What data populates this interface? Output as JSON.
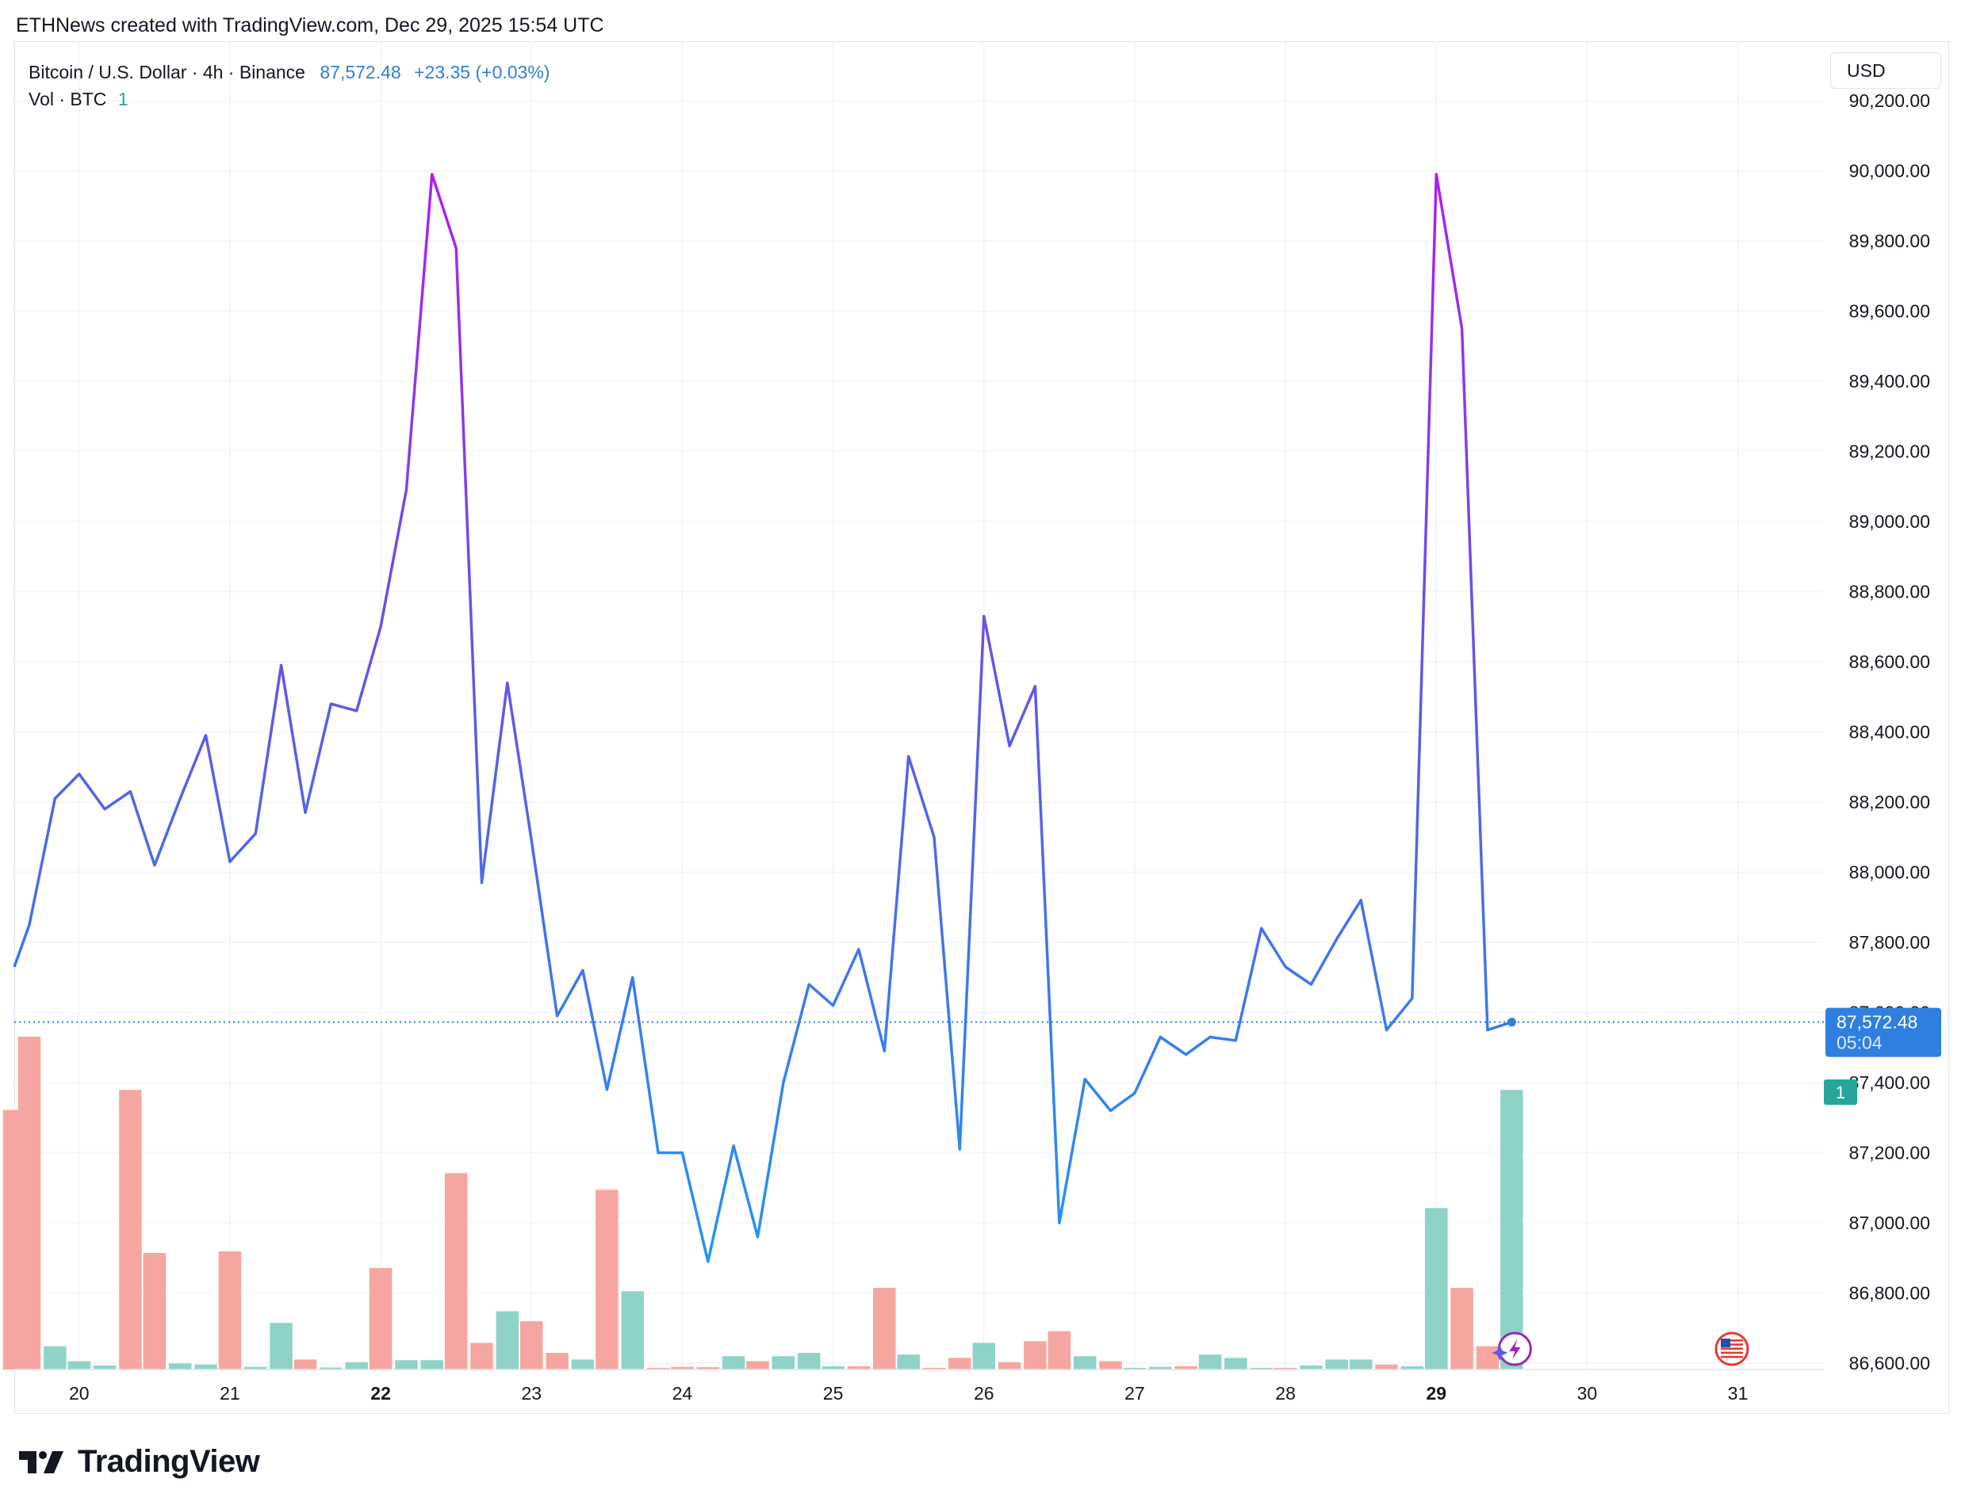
{
  "caption": "ETHNews created with TradingView.com, Dec 29, 2025 15:54 UTC",
  "legend": {
    "symbol": "Bitcoin / U.S. Dollar · 4h · Binance",
    "price": "87,572.48",
    "change": "+23.35 (+0.03%)",
    "vol_label": "Vol · BTC",
    "vol_value": "1"
  },
  "currency_button": "USD",
  "last_price_tag": {
    "price": "87,572.48",
    "countdown": "05:04"
  },
  "volume_tag": "1",
  "brand": "TradingView",
  "icons": [
    "tradingview-logo-icon",
    "lightning-icon",
    "us-flag-icon"
  ],
  "colors": {
    "line_low": "#2196f3",
    "line_mid": "#5b5ce2",
    "line_high": "#b01ef0",
    "volume_up": "#8fd3c8",
    "volume_down": "#f6a6a1",
    "price_tag": "#2f7fe0",
    "volume_tag": "#26a69a"
  },
  "chart_data": {
    "type": "line",
    "title": "Bitcoin / U.S. Dollar · 4h · Binance",
    "x_ticks": [
      {
        "label": "20",
        "t": 0.33,
        "bold": false
      },
      {
        "label": "21",
        "t": 1.33,
        "bold": false
      },
      {
        "label": "22",
        "t": 2.33,
        "bold": true
      },
      {
        "label": "23",
        "t": 3.33,
        "bold": false
      },
      {
        "label": "24",
        "t": 4.33,
        "bold": false
      },
      {
        "label": "25",
        "t": 5.33,
        "bold": false
      },
      {
        "label": "26",
        "t": 6.33,
        "bold": false
      },
      {
        "label": "27",
        "t": 7.33,
        "bold": false
      },
      {
        "label": "28",
        "t": 8.33,
        "bold": false
      },
      {
        "label": "29",
        "t": 9.33,
        "bold": true
      },
      {
        "label": "30",
        "t": 10.33,
        "bold": false
      },
      {
        "label": "31",
        "t": 11.33,
        "bold": false
      }
    ],
    "y_ticks": [
      {
        "label": "90,200.00",
        "value": 90200
      },
      {
        "label": "90,000.00",
        "value": 90000
      },
      {
        "label": "89,800.00",
        "value": 89800
      },
      {
        "label": "89,600.00",
        "value": 89600
      },
      {
        "label": "89,400.00",
        "value": 89400
      },
      {
        "label": "89,200.00",
        "value": 89200
      },
      {
        "label": "89,000.00",
        "value": 89000
      },
      {
        "label": "88,800.00",
        "value": 88800
      },
      {
        "label": "88,600.00",
        "value": 88600
      },
      {
        "label": "88,400.00",
        "value": 88400
      },
      {
        "label": "88,200.00",
        "value": 88200
      },
      {
        "label": "88,000.00",
        "value": 88000
      },
      {
        "label": "87,800.00",
        "value": 87800
      },
      {
        "label": "87,600.00",
        "value": 87600
      },
      {
        "label": "87,400.00",
        "value": 87400
      },
      {
        "label": "87,200.00",
        "value": 87200
      },
      {
        "label": "87,000.00",
        "value": 87000
      },
      {
        "label": "86,800.00",
        "value": 86800
      },
      {
        "label": "86,600.00",
        "value": 86600
      }
    ],
    "ylim": [
      86600,
      90200
    ],
    "xlim": [
      -0.1,
      11.9
    ],
    "grid": true,
    "series": [
      {
        "values": [
          [
            -0.1,
            87730
          ],
          [
            0.0,
            87850
          ],
          [
            0.17,
            88210
          ],
          [
            0.33,
            88280
          ],
          [
            0.5,
            88180
          ],
          [
            0.67,
            88230
          ],
          [
            0.83,
            88020
          ],
          [
            1.0,
            88210
          ],
          [
            1.17,
            88390
          ],
          [
            1.33,
            88030
          ],
          [
            1.5,
            88110
          ],
          [
            1.67,
            88590
          ],
          [
            1.83,
            88170
          ],
          [
            2.0,
            88480
          ],
          [
            2.17,
            88460
          ],
          [
            2.33,
            88700
          ],
          [
            2.5,
            89090
          ],
          [
            2.67,
            89990
          ],
          [
            2.83,
            89780
          ],
          [
            3.0,
            87970
          ],
          [
            3.17,
            88540
          ],
          [
            3.33,
            88090
          ],
          [
            3.5,
            87590
          ],
          [
            3.67,
            87720
          ],
          [
            3.83,
            87380
          ],
          [
            4.0,
            87700
          ],
          [
            4.17,
            87200
          ],
          [
            4.33,
            87200
          ],
          [
            4.5,
            86890
          ],
          [
            4.67,
            87220
          ],
          [
            4.83,
            86960
          ],
          [
            5.0,
            87400
          ],
          [
            5.17,
            87680
          ],
          [
            5.33,
            87620
          ],
          [
            5.5,
            87780
          ],
          [
            5.67,
            87490
          ],
          [
            5.83,
            88330
          ],
          [
            6.0,
            88100
          ],
          [
            6.17,
            87210
          ],
          [
            6.33,
            88730
          ],
          [
            6.5,
            88360
          ],
          [
            6.67,
            88530
          ],
          [
            6.83,
            87000
          ],
          [
            7.0,
            87410
          ],
          [
            7.17,
            87320
          ],
          [
            7.33,
            87370
          ],
          [
            7.5,
            87530
          ],
          [
            7.67,
            87480
          ],
          [
            7.83,
            87530
          ],
          [
            8.0,
            87520
          ],
          [
            8.17,
            87840
          ],
          [
            8.33,
            87730
          ],
          [
            8.5,
            87680
          ],
          [
            8.67,
            87810
          ],
          [
            8.83,
            87920
          ],
          [
            9.0,
            87550
          ],
          [
            9.17,
            87640
          ],
          [
            9.33,
            89990
          ],
          [
            9.5,
            89550
          ],
          [
            9.67,
            87550
          ],
          [
            9.83,
            87572.48
          ]
        ]
      }
    ],
    "volume": {
      "ylim": [
        0,
        1
      ],
      "values": [
        [
          -0.1,
          0.78,
          "down"
        ],
        [
          0.0,
          1.0,
          "down"
        ],
        [
          0.17,
          0.07,
          "up"
        ],
        [
          0.33,
          0.025,
          "up"
        ],
        [
          0.5,
          0.012,
          "up"
        ],
        [
          0.67,
          0.84,
          "down"
        ],
        [
          0.83,
          0.35,
          "down"
        ],
        [
          1.0,
          0.018,
          "up"
        ],
        [
          1.17,
          0.015,
          "up"
        ],
        [
          1.33,
          0.355,
          "down"
        ],
        [
          1.5,
          0.008,
          "up"
        ],
        [
          1.67,
          0.14,
          "up"
        ],
        [
          1.83,
          0.03,
          "down"
        ],
        [
          2.0,
          0.006,
          "up"
        ],
        [
          2.17,
          0.022,
          "up"
        ],
        [
          2.33,
          0.305,
          "down"
        ],
        [
          2.5,
          0.028,
          "up"
        ],
        [
          2.67,
          0.028,
          "up"
        ],
        [
          2.83,
          0.59,
          "down"
        ],
        [
          3.0,
          0.08,
          "down"
        ],
        [
          3.17,
          0.175,
          "up"
        ],
        [
          3.33,
          0.145,
          "down"
        ],
        [
          3.5,
          0.05,
          "down"
        ],
        [
          3.67,
          0.03,
          "up"
        ],
        [
          3.83,
          0.54,
          "down"
        ],
        [
          4.0,
          0.235,
          "up"
        ],
        [
          4.17,
          0.005,
          "down"
        ],
        [
          4.33,
          0.008,
          "down"
        ],
        [
          4.5,
          0.007,
          "down"
        ],
        [
          4.67,
          0.04,
          "up"
        ],
        [
          4.83,
          0.025,
          "down"
        ],
        [
          5.0,
          0.04,
          "up"
        ],
        [
          5.17,
          0.05,
          "up"
        ],
        [
          5.33,
          0.01,
          "up"
        ],
        [
          5.5,
          0.01,
          "down"
        ],
        [
          5.67,
          0.245,
          "down"
        ],
        [
          5.83,
          0.045,
          "up"
        ],
        [
          6.0,
          0.005,
          "down"
        ],
        [
          6.17,
          0.035,
          "down"
        ],
        [
          6.33,
          0.08,
          "up"
        ],
        [
          6.5,
          0.022,
          "down"
        ],
        [
          6.67,
          0.085,
          "down"
        ],
        [
          6.83,
          0.115,
          "down"
        ],
        [
          7.0,
          0.04,
          "up"
        ],
        [
          7.17,
          0.025,
          "down"
        ],
        [
          7.33,
          0.005,
          "up"
        ],
        [
          7.5,
          0.008,
          "up"
        ],
        [
          7.67,
          0.01,
          "down"
        ],
        [
          7.83,
          0.045,
          "up"
        ],
        [
          8.0,
          0.035,
          "up"
        ],
        [
          8.17,
          0.005,
          "up"
        ],
        [
          8.33,
          0.005,
          "down"
        ],
        [
          8.5,
          0.012,
          "up"
        ],
        [
          8.67,
          0.03,
          "up"
        ],
        [
          8.83,
          0.03,
          "up"
        ],
        [
          9.0,
          0.015,
          "down"
        ],
        [
          9.17,
          0.01,
          "up"
        ],
        [
          9.33,
          0.485,
          "up"
        ],
        [
          9.5,
          0.245,
          "down"
        ],
        [
          9.67,
          0.07,
          "down"
        ],
        [
          9.83,
          0.84,
          "up"
        ]
      ]
    }
  }
}
